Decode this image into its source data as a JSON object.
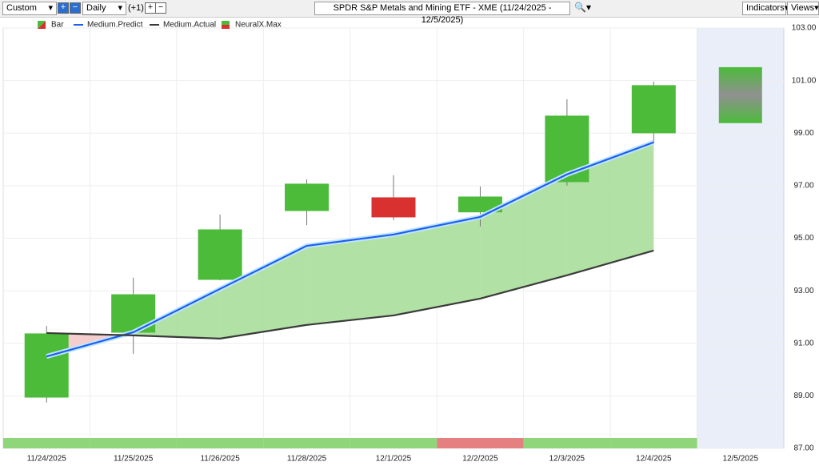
{
  "toolbar": {
    "period": "Custom",
    "interval": "Daily",
    "offset": "(+1)",
    "title": "SPDR S&P Metals and Mining ETF - XME (11/24/2025 - 12/5/2025)",
    "indicators": "Indicators",
    "views": "Views"
  },
  "chart_data": {
    "type": "candlestick",
    "categories": [
      "11/24/2025",
      "11/25/2025",
      "11/26/2025",
      "11/28/2025",
      "12/1/2025",
      "12/2/2025",
      "12/3/2025",
      "12/4/2025",
      "12/5/2025"
    ],
    "candles": {
      "name": "Bar",
      "up_color": "#4cbb3a",
      "down_color": "#d93030",
      "open": [
        88.95,
        91.42,
        93.43,
        96.05,
        96.54,
        96.0,
        97.15,
        99.01,
        null
      ],
      "high": [
        91.66,
        93.5,
        95.9,
        97.24,
        97.4,
        96.97,
        100.29,
        100.96,
        null
      ],
      "low": [
        88.74,
        90.6,
        93.4,
        95.5,
        95.69,
        95.45,
        97.0,
        98.59,
        null
      ],
      "close": [
        91.36,
        92.85,
        95.32,
        97.06,
        95.81,
        96.57,
        99.65,
        100.81,
        null
      ]
    },
    "series": [
      {
        "name": "Medium.Predict",
        "color": "#1e5ff0",
        "values": [
          90.5,
          91.42,
          93.07,
          94.71,
          95.14,
          95.81,
          97.43,
          98.65,
          null
        ]
      },
      {
        "name": "Medium.Actual",
        "color": "#3a3a3a",
        "values": [
          91.39,
          91.3,
          91.18,
          91.7,
          92.06,
          92.7,
          93.59,
          94.53,
          null
        ]
      }
    ],
    "forecast": {
      "name": "NeuralX.Max",
      "color": "#909090",
      "upper": [
        null,
        null,
        null,
        null,
        null,
        null,
        null,
        null,
        101.51
      ],
      "lower": [
        null,
        null,
        null,
        null,
        null,
        null,
        null,
        null,
        99.38
      ]
    },
    "signals": [
      "#8fd67a",
      "#8fd67a",
      "#8fd67a",
      "#8fd67a",
      "#8fd67a",
      "#e58080",
      "#8fd67a",
      "#8fd67a",
      null
    ],
    "ylim": [
      87,
      103
    ],
    "yticks": [
      {
        "value": 87,
        "label": "87.00"
      },
      {
        "value": 89,
        "label": "89.00"
      },
      {
        "value": 91,
        "label": "91.00"
      },
      {
        "value": 93,
        "label": "93.00"
      },
      {
        "value": 95,
        "label": "95.00"
      },
      {
        "value": 97,
        "label": "97.00"
      },
      {
        "value": 99,
        "label": "99.00"
      },
      {
        "value": 101,
        "label": "101.00"
      },
      {
        "value": 103,
        "label": "103.00"
      }
    ],
    "grid": true
  }
}
